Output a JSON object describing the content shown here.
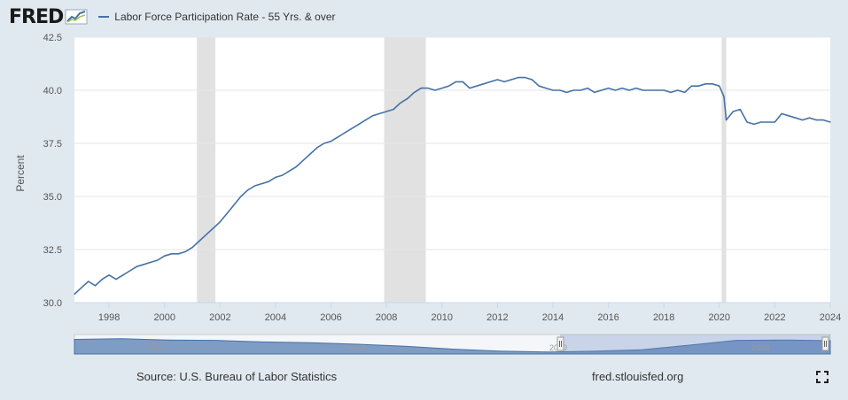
{
  "app": {
    "logo_text": "FRED",
    "source_text": "Source: U.S. Bureau of Labor Statistics",
    "site_text": "fred.stlouisfed.org"
  },
  "icons": {
    "logo": "line-graph-icon",
    "fullscreen": "fullscreen-icon"
  },
  "colors": {
    "series": "#4572a7",
    "recession": "#e1e1e1",
    "background": "#e1e9f0",
    "plot": "#ffffff"
  },
  "navigator": {
    "labels": [
      "1960",
      "1980",
      "2000",
      "2020"
    ]
  },
  "chart_data": {
    "type": "line",
    "ylabel": "Percent",
    "xlabel": "",
    "ylim": [
      30.0,
      42.5
    ],
    "xlim": [
      "1996-10",
      "2024-01"
    ],
    "yticks": [
      "30.0",
      "32.5",
      "35.0",
      "37.5",
      "40.0",
      "42.5"
    ],
    "xticks": [
      "1998",
      "2000",
      "2002",
      "2004",
      "2006",
      "2008",
      "2010",
      "2012",
      "2014",
      "2016",
      "2018",
      "2020",
      "2022",
      "2024"
    ],
    "grid": true,
    "legend": "top-left",
    "recessions": [
      [
        "2001-03",
        "2001-11"
      ],
      [
        "2007-12",
        "2009-06"
      ],
      [
        "2020-02",
        "2020-04"
      ]
    ],
    "series": [
      {
        "name": "Labor Force Participation Rate - 55 Yrs. & over",
        "color": "#4572a7",
        "points": [
          [
            "1996-10",
            30.4
          ],
          [
            "1997-01",
            30.7
          ],
          [
            "1997-04",
            31.0
          ],
          [
            "1997-07",
            30.8
          ],
          [
            "1997-10",
            31.1
          ],
          [
            "1998-01",
            31.3
          ],
          [
            "1998-04",
            31.1
          ],
          [
            "1998-07",
            31.3
          ],
          [
            "1998-10",
            31.5
          ],
          [
            "1999-01",
            31.7
          ],
          [
            "1999-04",
            31.8
          ],
          [
            "1999-07",
            31.9
          ],
          [
            "1999-10",
            32.0
          ],
          [
            "2000-01",
            32.2
          ],
          [
            "2000-04",
            32.3
          ],
          [
            "2000-07",
            32.3
          ],
          [
            "2000-10",
            32.4
          ],
          [
            "2001-01",
            32.6
          ],
          [
            "2001-04",
            32.9
          ],
          [
            "2001-07",
            33.2
          ],
          [
            "2001-10",
            33.5
          ],
          [
            "2002-01",
            33.8
          ],
          [
            "2002-04",
            34.2
          ],
          [
            "2002-07",
            34.6
          ],
          [
            "2002-10",
            35.0
          ],
          [
            "2003-01",
            35.3
          ],
          [
            "2003-04",
            35.5
          ],
          [
            "2003-07",
            35.6
          ],
          [
            "2003-10",
            35.7
          ],
          [
            "2004-01",
            35.9
          ],
          [
            "2004-04",
            36.0
          ],
          [
            "2004-07",
            36.2
          ],
          [
            "2004-10",
            36.4
          ],
          [
            "2005-01",
            36.7
          ],
          [
            "2005-04",
            37.0
          ],
          [
            "2005-07",
            37.3
          ],
          [
            "2005-10",
            37.5
          ],
          [
            "2006-01",
            37.6
          ],
          [
            "2006-04",
            37.8
          ],
          [
            "2006-07",
            38.0
          ],
          [
            "2006-10",
            38.2
          ],
          [
            "2007-01",
            38.4
          ],
          [
            "2007-04",
            38.6
          ],
          [
            "2007-07",
            38.8
          ],
          [
            "2007-10",
            38.9
          ],
          [
            "2008-01",
            39.0
          ],
          [
            "2008-04",
            39.1
          ],
          [
            "2008-07",
            39.4
          ],
          [
            "2008-10",
            39.6
          ],
          [
            "2009-01",
            39.9
          ],
          [
            "2009-04",
            40.1
          ],
          [
            "2009-07",
            40.1
          ],
          [
            "2009-10",
            40.0
          ],
          [
            "2010-01",
            40.1
          ],
          [
            "2010-04",
            40.2
          ],
          [
            "2010-07",
            40.4
          ],
          [
            "2010-10",
            40.4
          ],
          [
            "2011-01",
            40.1
          ],
          [
            "2011-04",
            40.2
          ],
          [
            "2011-07",
            40.3
          ],
          [
            "2011-10",
            40.4
          ],
          [
            "2012-01",
            40.5
          ],
          [
            "2012-04",
            40.4
          ],
          [
            "2012-07",
            40.5
          ],
          [
            "2012-10",
            40.6
          ],
          [
            "2013-01",
            40.6
          ],
          [
            "2013-04",
            40.5
          ],
          [
            "2013-07",
            40.2
          ],
          [
            "2013-10",
            40.1
          ],
          [
            "2014-01",
            40.0
          ],
          [
            "2014-04",
            40.0
          ],
          [
            "2014-07",
            39.9
          ],
          [
            "2014-10",
            40.0
          ],
          [
            "2015-01",
            40.0
          ],
          [
            "2015-04",
            40.1
          ],
          [
            "2015-07",
            39.9
          ],
          [
            "2015-10",
            40.0
          ],
          [
            "2016-01",
            40.1
          ],
          [
            "2016-04",
            40.0
          ],
          [
            "2016-07",
            40.1
          ],
          [
            "2016-10",
            40.0
          ],
          [
            "2017-01",
            40.1
          ],
          [
            "2017-04",
            40.0
          ],
          [
            "2017-07",
            40.0
          ],
          [
            "2017-10",
            40.0
          ],
          [
            "2018-01",
            40.0
          ],
          [
            "2018-04",
            39.9
          ],
          [
            "2018-07",
            40.0
          ],
          [
            "2018-10",
            39.9
          ],
          [
            "2019-01",
            40.2
          ],
          [
            "2019-04",
            40.2
          ],
          [
            "2019-07",
            40.3
          ],
          [
            "2019-10",
            40.3
          ],
          [
            "2020-01",
            40.2
          ],
          [
            "2020-03",
            39.7
          ],
          [
            "2020-04",
            38.6
          ],
          [
            "2020-07",
            39.0
          ],
          [
            "2020-10",
            39.1
          ],
          [
            "2021-01",
            38.5
          ],
          [
            "2021-04",
            38.4
          ],
          [
            "2021-07",
            38.5
          ],
          [
            "2021-10",
            38.5
          ],
          [
            "2022-01",
            38.5
          ],
          [
            "2022-04",
            38.9
          ],
          [
            "2022-07",
            38.8
          ],
          [
            "2022-10",
            38.7
          ],
          [
            "2023-01",
            38.6
          ],
          [
            "2023-04",
            38.7
          ],
          [
            "2023-07",
            38.6
          ],
          [
            "2023-10",
            38.6
          ],
          [
            "2024-01",
            38.5
          ]
        ]
      }
    ]
  }
}
